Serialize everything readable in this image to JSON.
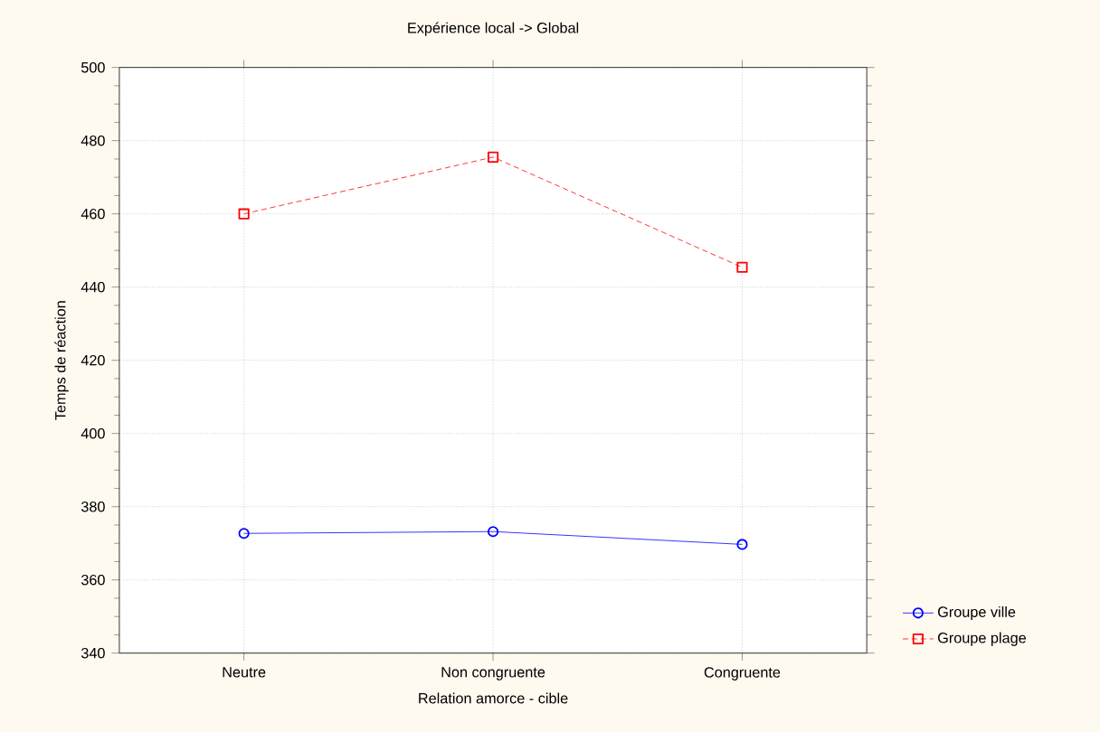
{
  "chart_data": {
    "type": "line",
    "title": "Expérience local -> Global",
    "xlabel": "Relation amorce - cible",
    "ylabel": "Temps de réaction",
    "categories": [
      "Neutre",
      "Non congruente",
      "Congruente"
    ],
    "series": [
      {
        "name": "Groupe ville",
        "color": "#0000ff",
        "values": [
          372.7,
          373.2,
          369.7
        ],
        "marker": "circle",
        "line_style": "solid"
      },
      {
        "name": "Groupe plage",
        "color": "#ff0000",
        "values": [
          460.0,
          475.5,
          445.4
        ],
        "marker": "square",
        "line_style": "dotted"
      }
    ],
    "ylim": [
      340,
      500
    ],
    "yticks": [
      340,
      360,
      380,
      400,
      420,
      440,
      460,
      480,
      500
    ],
    "grid": true,
    "legend": "bottom right"
  }
}
